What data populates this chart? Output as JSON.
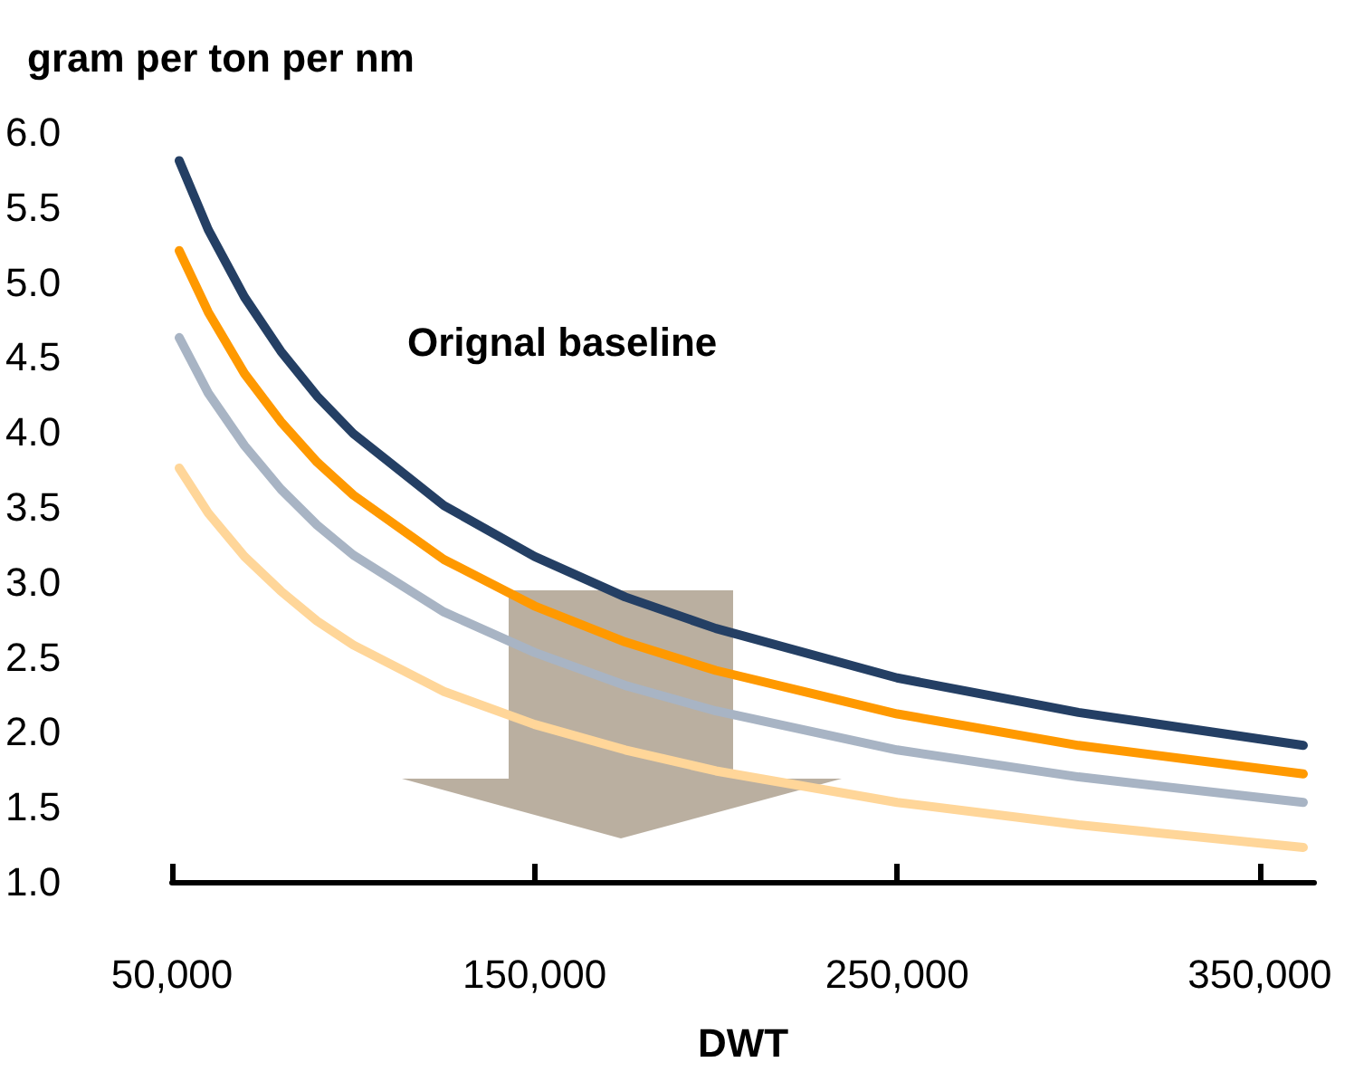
{
  "chart_data": {
    "type": "line",
    "ylabel": "gram per ton per nm",
    "xlabel": "DWT",
    "annotations": [
      "Orignal baseline"
    ],
    "x": [
      52000,
      60000,
      70000,
      80000,
      90000,
      100000,
      125000,
      150000,
      175000,
      200000,
      250000,
      300000,
      362000
    ],
    "series": [
      {
        "color": "#243f64",
        "values": [
          5.81,
          5.35,
          4.9,
          4.54,
          4.24,
          3.99,
          3.51,
          3.17,
          2.9,
          2.69,
          2.36,
          2.13,
          1.91
        ]
      },
      {
        "color": "#ff9900",
        "values": [
          5.21,
          4.8,
          4.39,
          4.07,
          3.8,
          3.58,
          3.15,
          2.84,
          2.6,
          2.41,
          2.12,
          1.91,
          1.72
        ]
      },
      {
        "color": "#a8b4c4",
        "values": [
          4.63,
          4.26,
          3.91,
          3.62,
          3.38,
          3.18,
          2.8,
          2.53,
          2.31,
          2.14,
          1.88,
          1.7,
          1.53
        ]
      },
      {
        "color": "#ffd699",
        "values": [
          3.76,
          3.46,
          3.17,
          2.94,
          2.74,
          2.58,
          2.27,
          2.05,
          1.88,
          1.74,
          1.53,
          1.38,
          1.23
        ]
      }
    ],
    "xlim": [
      50000,
      365000
    ],
    "xticks": [
      {
        "value": 50000,
        "label": "50,000"
      },
      {
        "value": 150000,
        "label": "150,000"
      },
      {
        "value": 250000,
        "label": "250,000"
      },
      {
        "value": 350000,
        "label": "350,000"
      }
    ],
    "ylim": [
      1,
      6
    ],
    "yticks": [
      {
        "value": 1,
        "label": "1.0"
      },
      {
        "value": 1.5,
        "label": "1.5"
      },
      {
        "value": 2,
        "label": "2.0"
      },
      {
        "value": 2.5,
        "label": "2.5"
      },
      {
        "value": 3,
        "label": "3.0"
      },
      {
        "value": 3.5,
        "label": "3.5"
      },
      {
        "value": 4,
        "label": "4.0"
      },
      {
        "value": 4.5,
        "label": "4.5"
      },
      {
        "value": 5,
        "label": "5.0"
      },
      {
        "value": 5.5,
        "label": "5.5"
      },
      {
        "value": 6,
        "label": "6.0"
      }
    ],
    "grid": false,
    "marker": "none",
    "line_style": "solid"
  }
}
